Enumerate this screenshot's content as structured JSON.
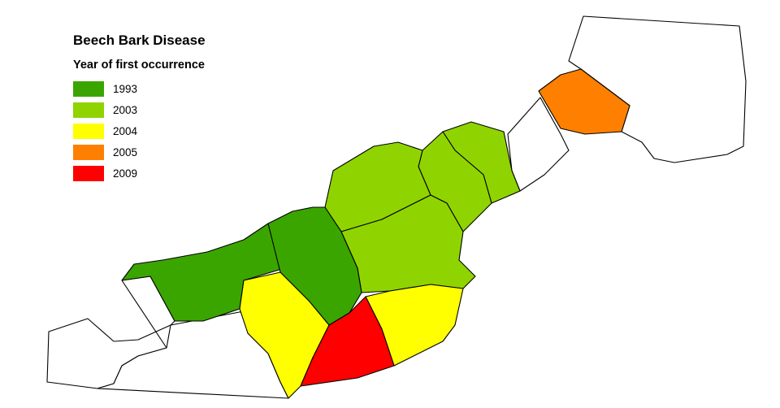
{
  "legend": {
    "title": "Beech Bark Disease",
    "subtitle": "Year of first occurrence",
    "items": [
      {
        "label": "1993",
        "color": "#3ba500"
      },
      {
        "label": "2003",
        "color": "#8fd400"
      },
      {
        "label": "2004",
        "color": "#ffff00"
      },
      {
        "label": "2005",
        "color": "#ff8000"
      },
      {
        "label": "2009",
        "color": "#ff0000"
      }
    ]
  },
  "colors": {
    "uninfested": "#ffffff",
    "border": "#000000"
  },
  "regions": [
    {
      "id": "western-1993",
      "year": "1993"
    },
    {
      "id": "central-1993",
      "year": "1993"
    },
    {
      "id": "north-central-2003",
      "year": "2003"
    },
    {
      "id": "central-2003",
      "year": "2003"
    },
    {
      "id": "ne-a-2003",
      "year": "2003"
    },
    {
      "id": "ne-b-2003",
      "year": "2003"
    },
    {
      "id": "sw-2004",
      "year": "2004"
    },
    {
      "id": "se-2004",
      "year": "2004"
    },
    {
      "id": "south-2009",
      "year": "2009"
    },
    {
      "id": "far-ne-2005",
      "year": "2005"
    },
    {
      "id": "west-uninfested",
      "year": ""
    },
    {
      "id": "southwest-uninfested",
      "year": ""
    },
    {
      "id": "ne-corridor-uninfested",
      "year": ""
    },
    {
      "id": "far-northeast-uninfested",
      "year": ""
    }
  ]
}
